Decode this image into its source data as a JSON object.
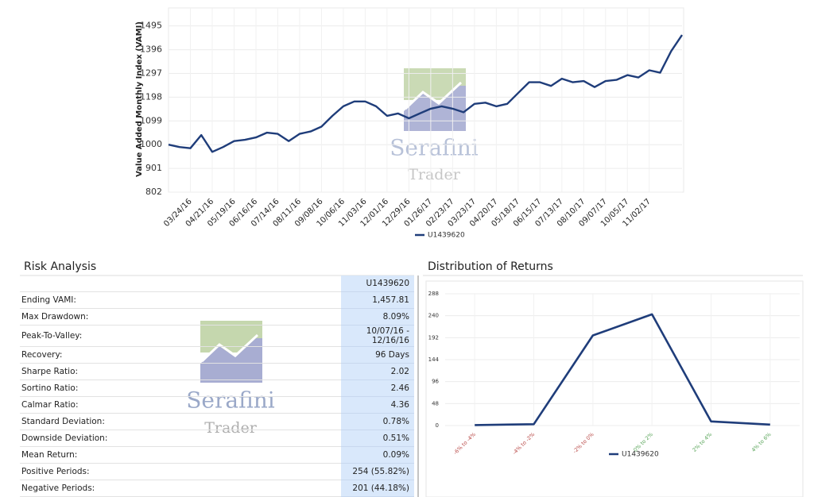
{
  "chart_data": [
    {
      "type": "line",
      "ylabel": "Value Added Monthly Index (VAMI)",
      "categories": [
        null,
        null,
        "03/24/16",
        null,
        "04/21/16",
        null,
        "05/19/16",
        null,
        "06/16/16",
        null,
        "07/14/16",
        null,
        "08/11/16",
        null,
        "09/08/16",
        null,
        "10/06/16",
        null,
        "11/03/16",
        null,
        "12/01/16",
        null,
        "12/29/16",
        null,
        "01/26/17",
        null,
        "02/23/17",
        null,
        "03/23/17",
        null,
        "04/20/17",
        null,
        "05/18/17",
        null,
        "06/15/17",
        null,
        "07/13/17",
        null,
        "08/10/17",
        null,
        "09/07/17",
        null,
        "10/05/17",
        null,
        "11/02/17",
        null,
        null,
        null
      ],
      "series": [
        {
          "name": "U1439620",
          "color": "#1f3d7a",
          "values": [
            1000,
            990,
            985,
            1040,
            970,
            990,
            1015,
            1020,
            1030,
            1050,
            1045,
            1015,
            1045,
            1055,
            1075,
            1120,
            1160,
            1180,
            1180,
            1160,
            1120,
            1130,
            1110,
            1130,
            1150,
            1160,
            1150,
            1135,
            1170,
            1175,
            1160,
            1170,
            1215,
            1260,
            1260,
            1245,
            1275,
            1260,
            1265,
            1240,
            1265,
            1270,
            1290,
            1280,
            1310,
            1300,
            1390,
            1457
          ]
        }
      ],
      "ylim": [
        802,
        1570
      ],
      "yticks": [
        802,
        901,
        1000,
        1099,
        1198,
        1297,
        1396,
        1495
      ],
      "grid": true
    },
    {
      "type": "line",
      "title": "Distribution of Returns",
      "categories": [
        "-6% to -4%",
        "-4% to -2%",
        "-2% to 0%",
        "0% to 2%",
        "2% to 4%",
        "4% to 6%"
      ],
      "label_colors": [
        "#b94a48",
        "#b94a48",
        "#b94a48",
        "#5aa55a",
        "#5aa55a",
        "#5aa55a"
      ],
      "series": [
        {
          "name": "U1439620",
          "color": "#1f3d7a",
          "values": [
            1,
            3,
            197,
            243,
            9,
            2
          ]
        }
      ],
      "ylim": [
        0,
        288
      ],
      "yticks": [
        0,
        48,
        96,
        144,
        192,
        240,
        288
      ],
      "grid": true
    }
  ],
  "risk_analysis": {
    "title": "Risk Analysis",
    "column": "U1439620",
    "rows": [
      [
        "Ending VAMI:",
        "1,457.81"
      ],
      [
        "Max Drawdown:",
        "8.09%"
      ],
      [
        "Peak-To-Valley:",
        "10/07/16 - 12/16/16"
      ],
      [
        "Recovery:",
        "96 Days"
      ],
      [
        "Sharpe Ratio:",
        "2.02"
      ],
      [
        "Sortino Ratio:",
        "2.46"
      ],
      [
        "Calmar Ratio:",
        "4.36"
      ],
      [
        "Standard Deviation:",
        "0.78%"
      ],
      [
        "Downside Deviation:",
        "0.51%"
      ],
      [
        "Mean Return:",
        "0.09%"
      ],
      [
        "Positive Periods:",
        "254 (55.82%)"
      ],
      [
        "Negative Periods:",
        "201 (44.18%)"
      ]
    ]
  },
  "watermark": {
    "name": "Serafini",
    "subtitle": "Trader"
  }
}
